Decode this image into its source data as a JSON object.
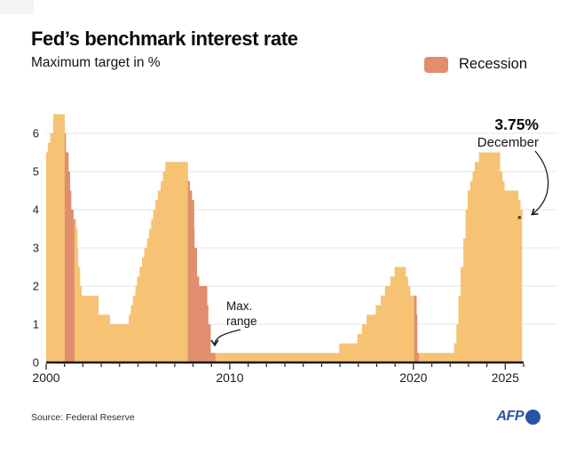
{
  "chart_data": {
    "type": "step-area",
    "title": "Fed’s benchmark interest rate",
    "subtitle": "Maximum target in %",
    "legend": {
      "label": "Recession",
      "position": "top-right"
    },
    "xlabel": "",
    "ylabel": "",
    "xlim": [
      2000,
      2026
    ],
    "ylim": [
      0,
      6.5
    ],
    "grid": "horizontal",
    "y_ticks": [
      0,
      1,
      2,
      3,
      4,
      5,
      6
    ],
    "x_tick_labels": [
      {
        "year": 2000,
        "label": "2000"
      },
      {
        "year": 2010,
        "label": "2010"
      },
      {
        "year": 2020,
        "label": "2020"
      },
      {
        "year": 2025,
        "label": "2025"
      }
    ],
    "series": [
      [
        2000.0,
        5.5
      ],
      [
        2000.09,
        5.75
      ],
      [
        2000.22,
        6.0
      ],
      [
        2000.38,
        6.5
      ],
      [
        2001.01,
        6.0
      ],
      [
        2001.08,
        5.5
      ],
      [
        2001.22,
        5.0
      ],
      [
        2001.3,
        4.5
      ],
      [
        2001.37,
        4.0
      ],
      [
        2001.49,
        3.75
      ],
      [
        2001.64,
        3.5
      ],
      [
        2001.71,
        3.0
      ],
      [
        2001.75,
        2.5
      ],
      [
        2001.85,
        2.0
      ],
      [
        2001.94,
        1.75
      ],
      [
        2002.85,
        1.25
      ],
      [
        2003.48,
        1.0
      ],
      [
        2004.5,
        1.25
      ],
      [
        2004.61,
        1.5
      ],
      [
        2004.72,
        1.75
      ],
      [
        2004.86,
        2.0
      ],
      [
        2004.95,
        2.25
      ],
      [
        2005.09,
        2.5
      ],
      [
        2005.22,
        2.75
      ],
      [
        2005.34,
        3.0
      ],
      [
        2005.49,
        3.25
      ],
      [
        2005.6,
        3.5
      ],
      [
        2005.72,
        3.75
      ],
      [
        2005.83,
        4.0
      ],
      [
        2005.95,
        4.25
      ],
      [
        2006.08,
        4.5
      ],
      [
        2006.24,
        4.75
      ],
      [
        2006.36,
        5.0
      ],
      [
        2006.49,
        5.25
      ],
      [
        2007.72,
        4.75
      ],
      [
        2007.83,
        4.5
      ],
      [
        2007.94,
        4.25
      ],
      [
        2008.06,
        3.5
      ],
      [
        2008.08,
        3.0
      ],
      [
        2008.21,
        2.25
      ],
      [
        2008.33,
        2.0
      ],
      [
        2008.77,
        1.5
      ],
      [
        2008.83,
        1.0
      ],
      [
        2008.96,
        0.25
      ],
      [
        2015.96,
        0.5
      ],
      [
        2016.95,
        0.75
      ],
      [
        2017.2,
        1.0
      ],
      [
        2017.45,
        1.25
      ],
      [
        2017.95,
        1.5
      ],
      [
        2018.22,
        1.75
      ],
      [
        2018.45,
        2.0
      ],
      [
        2018.74,
        2.25
      ],
      [
        2018.97,
        2.5
      ],
      [
        2019.58,
        2.25
      ],
      [
        2019.71,
        2.0
      ],
      [
        2019.83,
        1.75
      ],
      [
        2020.17,
        1.25
      ],
      [
        2020.21,
        0.25
      ],
      [
        2022.21,
        0.5
      ],
      [
        2022.34,
        1.0
      ],
      [
        2022.45,
        1.75
      ],
      [
        2022.57,
        2.5
      ],
      [
        2022.72,
        3.25
      ],
      [
        2022.84,
        4.0
      ],
      [
        2022.95,
        4.5
      ],
      [
        2023.09,
        4.75
      ],
      [
        2023.22,
        5.0
      ],
      [
        2023.34,
        5.25
      ],
      [
        2023.57,
        5.5
      ],
      [
        2024.72,
        5.0
      ],
      [
        2024.85,
        4.75
      ],
      [
        2024.96,
        4.5
      ],
      [
        2025.71,
        4.25
      ],
      [
        2025.83,
        4.0
      ],
      [
        2025.94,
        3.75
      ]
    ],
    "end_year": 2025.92,
    "recessions": [
      [
        2001.01,
        2001.54
      ],
      [
        2007.72,
        2009.22
      ],
      [
        2020.04,
        2020.29
      ]
    ],
    "colors": {
      "area": "#F5C373",
      "recession": "#E08E6D",
      "axis": "#1a1a1a",
      "tick": "#1c1c1c",
      "grid": "#eaeaea",
      "dot": "#3a3a3a",
      "afp_blue": "#2853A6"
    }
  },
  "annotations": {
    "max_range": {
      "line1": "Max.",
      "line2": "range"
    },
    "latest": {
      "value": "3.75%",
      "period": "December"
    }
  },
  "footer": {
    "source": "Source: Federal Reserve",
    "logo_text": "AFP"
  }
}
